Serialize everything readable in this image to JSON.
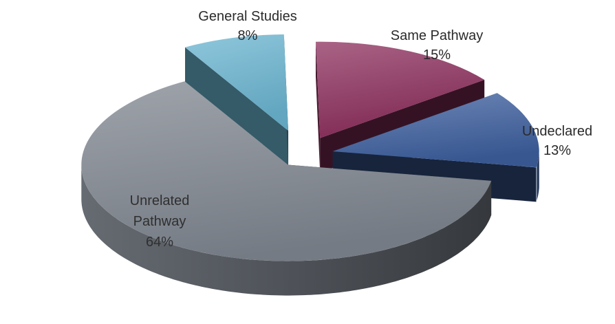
{
  "chart_data": {
    "type": "pie",
    "style": "3d-exploded",
    "title": "",
    "slices": [
      {
        "id": "general-studies",
        "label_lines": [
          "General Studies",
          "8%"
        ],
        "value": 8,
        "color": "#6ab4d0"
      },
      {
        "id": "same-pathway",
        "label_lines": [
          "Same Pathway",
          "15%"
        ],
        "value": 15,
        "color": "#8c2f5c"
      },
      {
        "id": "undeclared",
        "label_lines": [
          "Undeclared",
          "13%"
        ],
        "value": 13,
        "color": "#3d5f9e"
      },
      {
        "id": "unrelated-pathway",
        "label_lines": [
          "Unrelated",
          "Pathway",
          "64%"
        ],
        "value": 64,
        "color": "#7f868f"
      }
    ]
  }
}
